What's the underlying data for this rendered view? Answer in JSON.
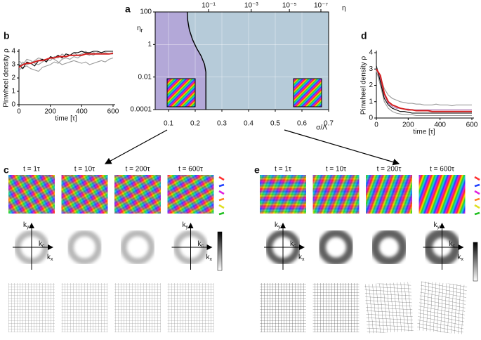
{
  "chart_data": [
    {
      "type": "phase",
      "label": "a",
      "xlabel": "σ/Λ",
      "ylabel": "η",
      "ylabel_sub": "r",
      "x2label": "η",
      "xlim": [
        0.05,
        0.7
      ],
      "ylim": [
        0.0001,
        100
      ],
      "ylog": true,
      "xticks": [
        0.1,
        0.2,
        0.3,
        0.4,
        0.5,
        0.6,
        0.7
      ],
      "yticks": [
        100,
        1,
        0.01,
        0.0001
      ],
      "x2ticks": [
        {
          "value": 0.25,
          "label": "10⁻¹"
        },
        {
          "value": 0.41,
          "label": "10⁻³"
        },
        {
          "value": 0.553,
          "label": "10⁻⁵"
        },
        {
          "value": 0.671,
          "label": "10⁻⁷"
        }
      ],
      "grid": true,
      "region_colors": [
        "#b3a8d8",
        "#b6cbd9"
      ],
      "series": [
        {
          "color": "#000000",
          "x": [
            0.17,
            0.172,
            0.178,
            0.19,
            0.205,
            0.222,
            0.235,
            0.24,
            0.24
          ],
          "values": [
            100,
            30,
            8,
            2,
            0.6,
            0.2,
            0.06,
            0.02,
            0.0001
          ]
        }
      ]
    },
    {
      "type": "line",
      "label": "b",
      "xlabel": "time [τ]",
      "ylabel": "Pinwheel density ρ",
      "xlim": [
        0,
        600
      ],
      "ylim": [
        0,
        4
      ],
      "xticks": [
        0,
        200,
        400,
        600
      ],
      "yticks": [
        0,
        1,
        2,
        3,
        4
      ],
      "x": [
        0,
        25,
        50,
        75,
        100,
        125,
        150,
        175,
        200,
        225,
        250,
        275,
        300,
        325,
        350,
        375,
        400,
        425,
        450,
        475,
        500,
        525,
        550,
        575,
        600
      ],
      "series": [
        {
          "color": "#9a9a9a",
          "values": [
            3.3,
            3.0,
            3.4,
            3.3,
            3.1,
            3.0,
            3.2,
            3.4,
            3.3,
            3.6,
            3.5,
            3.8,
            3.6,
            3.7,
            3.9,
            3.7,
            3.8,
            4.0,
            3.8,
            3.7,
            3.9,
            3.8,
            3.9,
            3.8,
            3.9
          ]
        },
        {
          "color": "#9a9a9a",
          "values": [
            2.6,
            2.8,
            2.9,
            2.7,
            2.6,
            2.5,
            2.8,
            2.9,
            3.0,
            3.2,
            3.1,
            3.4,
            3.5,
            3.4,
            3.6,
            3.5,
            3.7,
            3.8,
            3.7,
            3.9,
            3.8,
            3.8,
            3.9,
            3.8,
            3.8
          ]
        },
        {
          "color": "#9a9a9a",
          "values": [
            2.8,
            3.2,
            3.0,
            3.1,
            3.3,
            3.5,
            3.4,
            3.3,
            3.5,
            3.4,
            3.2,
            3.0,
            3.1,
            3.2,
            3.3,
            3.2,
            3.1,
            3.2,
            3.0,
            3.1,
            3.2,
            3.3,
            3.2,
            3.4,
            3.5
          ]
        },
        {
          "color": "#000000",
          "values": [
            3.0,
            2.7,
            3.2,
            3.1,
            2.9,
            3.3,
            3.4,
            3.2,
            3.6,
            3.5,
            3.7,
            3.5,
            3.8,
            3.7,
            3.9,
            3.9,
            4.0,
            3.9,
            3.9,
            4.0,
            4.0,
            3.9,
            4.0,
            4.0,
            4.0
          ]
        },
        {
          "color": "#d42020",
          "values": [
            2.8,
            3.0,
            3.1,
            3.1,
            3.2,
            3.3,
            3.3,
            3.4,
            3.5,
            3.5,
            3.6,
            3.6,
            3.6,
            3.7,
            3.7,
            3.7,
            3.7,
            3.8,
            3.8,
            3.8,
            3.8,
            3.8,
            3.8,
            3.8,
            3.85
          ]
        }
      ]
    },
    {
      "type": "line",
      "label": "d",
      "xlabel": "time [τ]",
      "ylabel": "Pinwheel density ρ",
      "xlim": [
        0,
        600
      ],
      "ylim": [
        0,
        4
      ],
      "xticks": [
        0,
        200,
        400,
        600
      ],
      "yticks": [
        0,
        1,
        2,
        3,
        4
      ],
      "x": [
        0,
        25,
        50,
        75,
        100,
        125,
        150,
        175,
        200,
        225,
        250,
        275,
        300,
        325,
        350,
        375,
        400,
        425,
        450,
        475,
        500,
        525,
        550,
        575,
        600
      ],
      "series": [
        {
          "color": "#9a9a9a",
          "values": [
            3.1,
            2.5,
            1.8,
            1.4,
            1.2,
            1.1,
            1.0,
            0.95,
            0.9,
            0.9,
            0.85,
            0.85,
            0.8,
            0.8,
            0.8,
            0.85,
            0.8,
            0.8,
            0.8,
            0.75,
            0.8,
            0.8,
            0.8,
            0.8,
            0.8
          ]
        },
        {
          "color": "#9a9a9a",
          "values": [
            2.9,
            2.0,
            1.0,
            0.6,
            0.4,
            0.3,
            0.25,
            0.2,
            0.2,
            0.2,
            0.15,
            0.15,
            0.15,
            0.15,
            0.15,
            0.15,
            0.15,
            0.15,
            0.15,
            0.15,
            0.15,
            0.15,
            0.15,
            0.15,
            0.15
          ]
        },
        {
          "color": "#a36fb0",
          "values": [
            3.0,
            2.4,
            1.4,
            0.9,
            0.7,
            0.6,
            0.6,
            0.55,
            0.55,
            0.5,
            0.5,
            0.5,
            0.5,
            0.5,
            0.5,
            0.5,
            0.5,
            0.5,
            0.5,
            0.5,
            0.5,
            0.5,
            0.5,
            0.5,
            0.5
          ]
        },
        {
          "color": "#000000",
          "values": [
            3.2,
            2.2,
            1.2,
            0.8,
            0.6,
            0.5,
            0.4,
            0.4,
            0.35,
            0.3,
            0.3,
            0.3,
            0.3,
            0.3,
            0.3,
            0.3,
            0.3,
            0.3,
            0.3,
            0.3,
            0.3,
            0.3,
            0.3,
            0.3,
            0.3
          ]
        },
        {
          "color": "#d42020",
          "values": [
            3.0,
            2.6,
            1.5,
            1.0,
            0.8,
            0.7,
            0.6,
            0.55,
            0.5,
            0.5,
            0.45,
            0.45,
            0.45,
            0.45,
            0.4,
            0.4,
            0.4,
            0.4,
            0.4,
            0.4,
            0.4,
            0.4,
            0.4,
            0.4,
            0.4
          ]
        }
      ]
    }
  ],
  "panels": {
    "c": {
      "label": "c",
      "times": [
        "t = 1τ",
        "t = 10τ",
        "t = 200τ",
        "t = 600τ"
      ]
    },
    "e": {
      "label": "e",
      "times": [
        "t = 1τ",
        "t = 10τ",
        "t = 200τ",
        "t = 600τ"
      ]
    },
    "spectrum_axes": {
      "ky": {
        "main": "k",
        "sub": "y"
      },
      "kx": {
        "main": "k",
        "sub": "x"
      },
      "kc": {
        "main": "k",
        "sub": "c"
      }
    }
  }
}
